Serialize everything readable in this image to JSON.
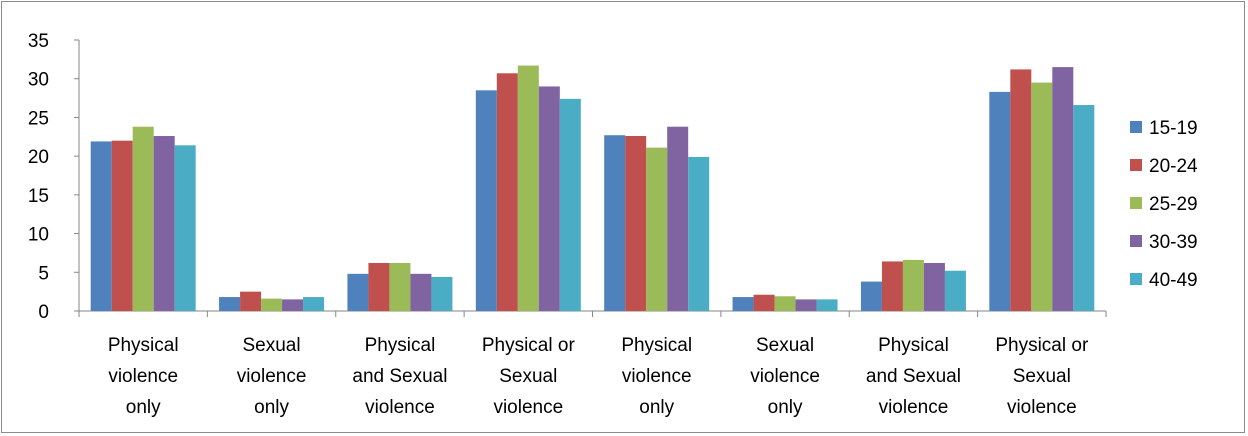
{
  "chart_data": {
    "type": "bar",
    "title": "",
    "xlabel": "",
    "ylabel": "",
    "ylim": [
      0,
      35
    ],
    "yticks": [
      0,
      5,
      10,
      15,
      20,
      25,
      30,
      35
    ],
    "grid": false,
    "legend_position": "right",
    "categories": [
      [
        "Physical",
        "violence",
        "only"
      ],
      [
        "Sexual",
        "violence",
        "only"
      ],
      [
        "Physical",
        "and Sexual",
        "violence"
      ],
      [
        "Physical or",
        "Sexual",
        "violence"
      ],
      [
        "Physical",
        "violence",
        "only"
      ],
      [
        "Sexual",
        "violence",
        "only"
      ],
      [
        "Physical",
        "and Sexual",
        "violence"
      ],
      [
        "Physical or",
        "Sexual",
        "violence"
      ]
    ],
    "series": [
      {
        "name": "15-19",
        "color": "#4f81bd",
        "values": [
          21.9,
          1.8,
          4.8,
          28.5,
          22.7,
          1.8,
          3.8,
          28.3
        ]
      },
      {
        "name": "20-24",
        "color": "#c0504d",
        "values": [
          22.0,
          2.5,
          6.2,
          30.7,
          22.6,
          2.1,
          6.4,
          31.2
        ]
      },
      {
        "name": "25-29",
        "color": "#9bbb59",
        "values": [
          23.8,
          1.6,
          6.2,
          31.7,
          21.1,
          1.9,
          6.6,
          29.5
        ]
      },
      {
        "name": "30-39",
        "color": "#8064a2",
        "values": [
          22.6,
          1.5,
          4.8,
          29.0,
          23.8,
          1.5,
          6.2,
          31.5
        ]
      },
      {
        "name": "40-49",
        "color": "#4bacc6",
        "values": [
          21.4,
          1.8,
          4.4,
          27.4,
          19.9,
          1.5,
          5.2,
          26.6
        ]
      }
    ]
  }
}
